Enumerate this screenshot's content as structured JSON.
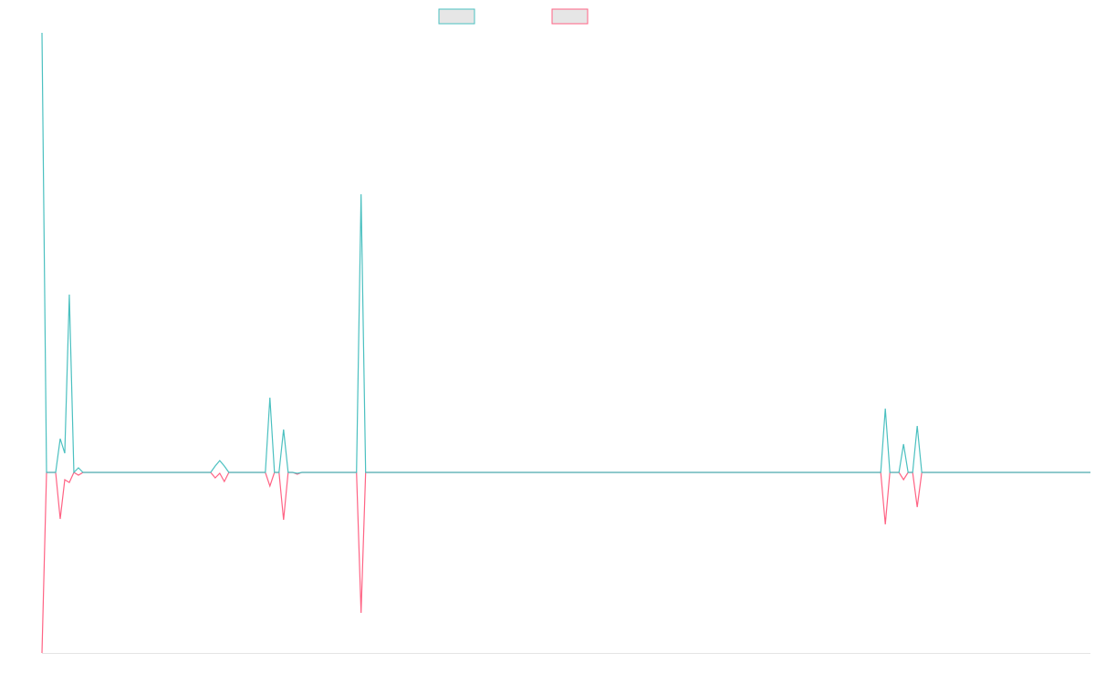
{
  "chart_data": {
    "type": "line",
    "ylim": [
      -198,
      482
    ],
    "series": [
      {
        "color": "#4bc0c0",
        "values": [
          482,
          0,
          0,
          0,
          37,
          21,
          195,
          0,
          5,
          0,
          0,
          0,
          0,
          0,
          0,
          0,
          0,
          0,
          0,
          0,
          0,
          0,
          0,
          0,
          0,
          0,
          0,
          0,
          0,
          0,
          0,
          0,
          0,
          0,
          0,
          0,
          0,
          0,
          7,
          13,
          7,
          0,
          0,
          0,
          0,
          0,
          0,
          0,
          0,
          0,
          82,
          0,
          0,
          47,
          0,
          0,
          -1,
          0,
          0,
          0,
          0,
          0,
          0,
          0,
          0,
          0,
          0,
          0,
          0,
          0,
          305,
          0,
          0,
          0,
          0,
          0,
          0,
          0,
          0,
          0,
          0,
          0,
          0,
          0,
          0,
          0,
          0,
          0,
          0,
          0,
          0,
          0,
          0,
          0,
          0,
          0,
          0,
          0,
          0,
          0,
          0,
          0,
          0,
          0,
          0,
          0,
          0,
          0,
          0,
          0,
          0,
          0,
          0,
          0,
          0,
          0,
          0,
          0,
          0,
          0,
          0,
          0,
          0,
          0,
          0,
          0,
          0,
          0,
          0,
          0,
          0,
          0,
          0,
          0,
          0,
          0,
          0,
          0,
          0,
          0,
          0,
          0,
          0,
          0,
          0,
          0,
          0,
          0,
          0,
          0,
          0,
          0,
          0,
          0,
          0,
          0,
          0,
          0,
          0,
          0,
          0,
          0,
          0,
          0,
          0,
          0,
          0,
          0,
          0,
          0,
          0,
          0,
          0,
          0,
          0,
          0,
          0,
          0,
          0,
          0,
          0,
          0,
          0,
          0,
          0,
          70,
          0,
          0,
          0,
          31,
          0,
          0,
          51,
          0,
          0,
          0,
          0,
          0,
          0,
          0,
          0,
          0,
          0,
          0,
          0,
          0,
          0,
          0,
          0,
          0,
          0,
          0,
          0,
          0,
          0,
          0,
          0,
          0,
          0,
          0,
          0,
          0,
          0,
          0,
          0,
          0,
          0,
          0,
          0,
          0,
          0
        ]
      },
      {
        "color": "#ff6384",
        "values": [
          -198,
          0,
          0,
          0,
          -51,
          -8,
          -11,
          0,
          -3,
          0,
          0,
          0,
          0,
          0,
          0,
          0,
          0,
          0,
          0,
          0,
          0,
          0,
          0,
          0,
          0,
          0,
          0,
          0,
          0,
          0,
          0,
          0,
          0,
          0,
          0,
          0,
          0,
          0,
          -6,
          -1,
          -10,
          0,
          0,
          0,
          0,
          0,
          0,
          0,
          0,
          0,
          -15,
          0,
          0,
          -52,
          0,
          0,
          -2,
          0,
          0,
          0,
          0,
          0,
          0,
          0,
          0,
          0,
          0,
          0,
          0,
          0,
          -154,
          0,
          0,
          0,
          0,
          0,
          0,
          0,
          0,
          0,
          0,
          0,
          0,
          0,
          0,
          0,
          0,
          0,
          0,
          0,
          0,
          0,
          0,
          0,
          0,
          0,
          0,
          0,
          0,
          0,
          0,
          0,
          0,
          0,
          0,
          0,
          0,
          0,
          0,
          0,
          0,
          0,
          0,
          0,
          0,
          0,
          0,
          0,
          0,
          0,
          0,
          0,
          0,
          0,
          0,
          0,
          0,
          0,
          0,
          0,
          0,
          0,
          0,
          0,
          0,
          0,
          0,
          0,
          0,
          0,
          0,
          0,
          0,
          0,
          0,
          0,
          0,
          0,
          0,
          0,
          0,
          0,
          0,
          0,
          0,
          0,
          0,
          0,
          0,
          0,
          0,
          0,
          0,
          0,
          0,
          0,
          0,
          0,
          0,
          0,
          0,
          0,
          0,
          0,
          0,
          0,
          0,
          0,
          0,
          0,
          0,
          0,
          0,
          0,
          0,
          -57,
          0,
          0,
          0,
          -8,
          0,
          0,
          -38,
          0,
          0,
          0,
          0,
          0,
          0,
          0,
          0,
          0,
          0,
          0,
          0,
          0,
          0,
          0,
          0,
          0,
          0,
          0,
          0,
          0,
          0,
          0,
          0,
          0,
          0,
          0,
          0,
          0,
          0,
          0,
          0,
          0,
          0,
          0,
          0,
          0,
          0
        ]
      }
    ]
  }
}
